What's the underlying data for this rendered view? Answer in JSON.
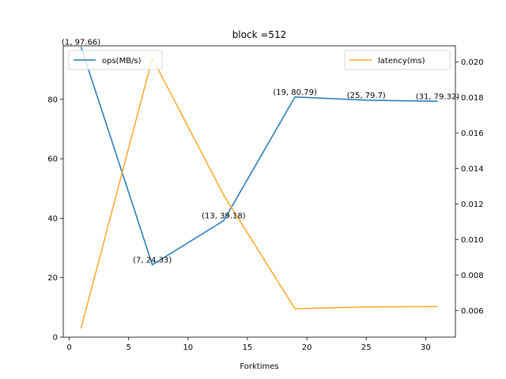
{
  "chart_data": {
    "type": "line",
    "title": "block =512",
    "xlabel": "Forktimes",
    "x": [
      1,
      7,
      13,
      19,
      25,
      31
    ],
    "xlim": [
      -0.5,
      32.5
    ],
    "xticks": [
      0,
      5,
      10,
      15,
      20,
      25,
      30
    ],
    "series": [
      {
        "name": "ops(MB/s)",
        "axis": "left",
        "color": "#1f77b4",
        "values": [
          97.66,
          24.33,
          39.18,
          80.79,
          79.7,
          79.32
        ],
        "annotations": [
          "(1, 97.66)",
          "(7, 24.33)",
          "(13, 39.18)",
          "(19, 80.79)",
          "(25, 79.7)",
          "(31, 79.32)"
        ]
      },
      {
        "name": "latency(ms)",
        "axis": "right",
        "color": "#ffa726",
        "values": [
          0.005,
          0.0202,
          0.0125,
          0.0061,
          0.0062,
          0.00622
        ]
      }
    ],
    "ylim_left": [
      0,
      98
    ],
    "yticks_left": [
      0,
      20,
      40,
      60,
      80
    ],
    "ylim_right": [
      0.0045,
      0.0209
    ],
    "yticks_right": [
      "0.006",
      "0.008",
      "0.010",
      "0.012",
      "0.014",
      "0.016",
      "0.018",
      "0.020"
    ],
    "legend_left": "upper-left",
    "legend_right": "upper-right",
    "grid": false
  }
}
